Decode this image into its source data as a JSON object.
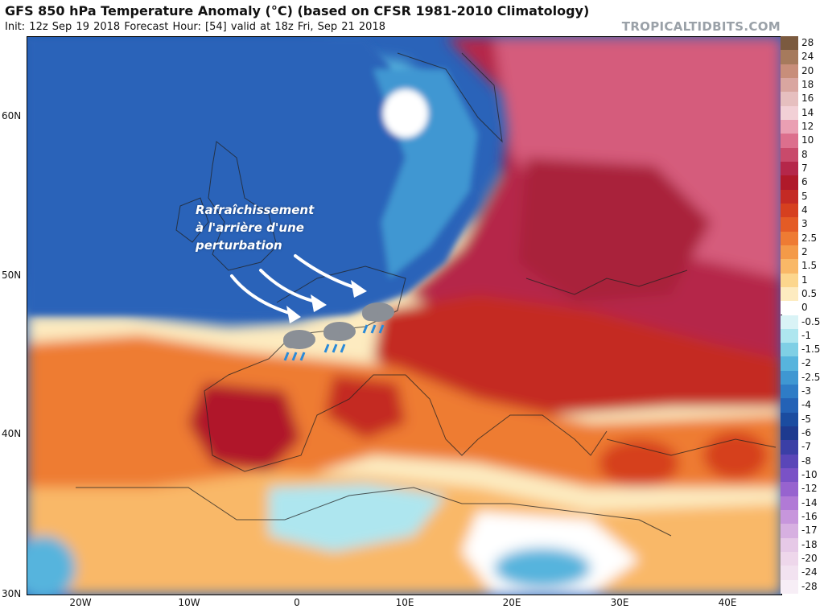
{
  "header": {
    "title": "GFS 850 hPa Temperature Anomaly (°C) (based on CFSR 1981-2010 Climatology)",
    "subtitle": "Init: 12z Sep 19 2018   Forecast Hour: [54]   valid at 18z Fri, Sep 21 2018",
    "credit": "TROPICALTIDBITS.COM"
  },
  "annotation": {
    "line1": "Rafraîchissement",
    "line2": "à l'arrière d'une",
    "line3": "perturbation"
  },
  "axes": {
    "lat_labels": [
      "60N",
      "50N",
      "40N",
      "30N"
    ],
    "lon_labels": [
      "20W",
      "10W",
      "0",
      "10E",
      "20E",
      "30E",
      "40E"
    ]
  },
  "legend": {
    "items": [
      {
        "label": "28",
        "color": "#7b5a3f"
      },
      {
        "label": "24",
        "color": "#a67a5c"
      },
      {
        "label": "20",
        "color": "#c88e7a"
      },
      {
        "label": "18",
        "color": "#d9a6a0"
      },
      {
        "label": "16",
        "color": "#e6bfbf"
      },
      {
        "label": "14",
        "color": "#f2d0d6"
      },
      {
        "label": "12",
        "color": "#ea9fb3"
      },
      {
        "label": "10",
        "color": "#dc6f8d"
      },
      {
        "label": "8",
        "color": "#c94a6b"
      },
      {
        "label": "7",
        "color": "#b5274a"
      },
      {
        "label": "6",
        "color": "#b0192a"
      },
      {
        "label": "5",
        "color": "#c42a24"
      },
      {
        "label": "4",
        "color": "#d6401f"
      },
      {
        "label": "3",
        "color": "#e45b25"
      },
      {
        "label": "2.5",
        "color": "#ee7b33"
      },
      {
        "label": "2",
        "color": "#f49a48"
      },
      {
        "label": "1.5",
        "color": "#f9b867"
      },
      {
        "label": "1",
        "color": "#fcd68d"
      },
      {
        "label": "0.5",
        "color": "#fdebc0"
      },
      {
        "label": "0",
        "color": "#ffffff"
      },
      {
        "label": "-0.5",
        "color": "#d9f3f6"
      },
      {
        "label": "-1",
        "color": "#aee6ef"
      },
      {
        "label": "-1.5",
        "color": "#7fcfe5"
      },
      {
        "label": "-2",
        "color": "#57b4dd"
      },
      {
        "label": "-2.5",
        "color": "#3f97d2"
      },
      {
        "label": "-3",
        "color": "#2f7cc6"
      },
      {
        "label": "-4",
        "color": "#2462b6"
      },
      {
        "label": "-5",
        "color": "#1b4ca0"
      },
      {
        "label": "-6",
        "color": "#1e3a8f"
      },
      {
        "label": "-7",
        "color": "#3b3fa6"
      },
      {
        "label": "-8",
        "color": "#5a46b8"
      },
      {
        "label": "-10",
        "color": "#7a52c6"
      },
      {
        "label": "-12",
        "color": "#9763cf"
      },
      {
        "label": "-14",
        "color": "#b17ad6"
      },
      {
        "label": "-16",
        "color": "#c796dc"
      },
      {
        "label": "-17",
        "color": "#d7b0e1"
      },
      {
        "label": "-18",
        "color": "#e6c9e7"
      },
      {
        "label": "-20",
        "color": "#eed7eb"
      },
      {
        "label": "-24",
        "color": "#f2e2f0"
      },
      {
        "label": "-28",
        "color": "#f7eef6"
      }
    ]
  }
}
